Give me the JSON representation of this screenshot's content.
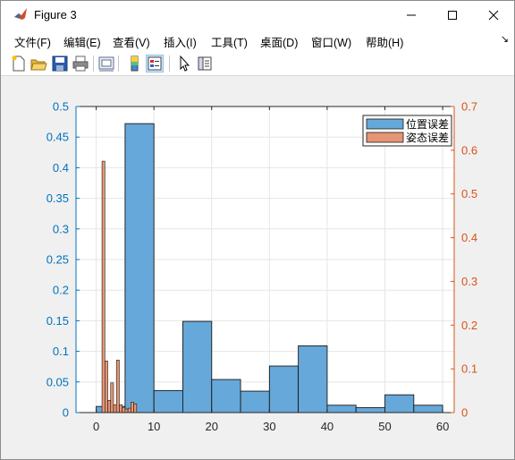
{
  "window": {
    "title": "Figure 3",
    "controls": {
      "minimize": "minimize",
      "maximize": "maximize",
      "close": "close"
    }
  },
  "menubar": {
    "items": [
      "文件(F)",
      "编辑(E)",
      "查看(V)",
      "插入(I)",
      "工具(T)",
      "桌面(D)",
      "窗口(W)",
      "帮助(H)"
    ],
    "overflow_arrow": "↘"
  },
  "toolbar": {
    "icons": [
      "new-figure-icon",
      "open-file-icon",
      "save-icon",
      "print-icon",
      "link-plot-icon",
      "colorbar-icon",
      "legend-icon",
      "pointer-icon",
      "property-inspector-icon"
    ]
  },
  "colors": {
    "left_axis": "#0072bd",
    "right_axis": "#d95319",
    "series1_fill": "#66a8d9",
    "series2_fill": "#e59574"
  },
  "chart_data": {
    "type": "bar",
    "subtype": "histogram",
    "title": "",
    "xlabel": "",
    "ylabel_left": "",
    "ylabel_right": "",
    "xlim": [
      -3.5,
      62
    ],
    "xticks": [
      0,
      10,
      20,
      30,
      40,
      50,
      60
    ],
    "left_ylim": [
      0,
      0.5
    ],
    "left_yticks": [
      0,
      0.05,
      0.1,
      0.15,
      0.2,
      0.25,
      0.3,
      0.35,
      0.4,
      0.45,
      0.5
    ],
    "right_ylim": [
      0,
      0.7
    ],
    "right_yticks": [
      0,
      0.1,
      0.2,
      0.3,
      0.4,
      0.5,
      0.6,
      0.7
    ],
    "grid": true,
    "legend_position": "top-right",
    "series": [
      {
        "name": "位置误差",
        "axis": "left",
        "bin_edges": [
          0,
          5,
          10,
          15,
          20,
          25,
          30,
          35,
          40,
          45,
          50,
          55,
          60
        ],
        "values": [
          0.01,
          0.472,
          0.036,
          0.149,
          0.054,
          0.035,
          0.076,
          0.109,
          0.012,
          0.008,
          0.029,
          0.012
        ]
      },
      {
        "name": "姿态误差",
        "axis": "right",
        "bin_edges": [
          1,
          1.5,
          2,
          2.5,
          3,
          3.5,
          4,
          4.5,
          5,
          5.5,
          6,
          6.5,
          7
        ],
        "values": [
          0.575,
          0.118,
          0.028,
          0.068,
          0.018,
          0.12,
          0.018,
          0.012,
          0.008,
          0.01,
          0.024,
          0.02
        ]
      }
    ]
  }
}
